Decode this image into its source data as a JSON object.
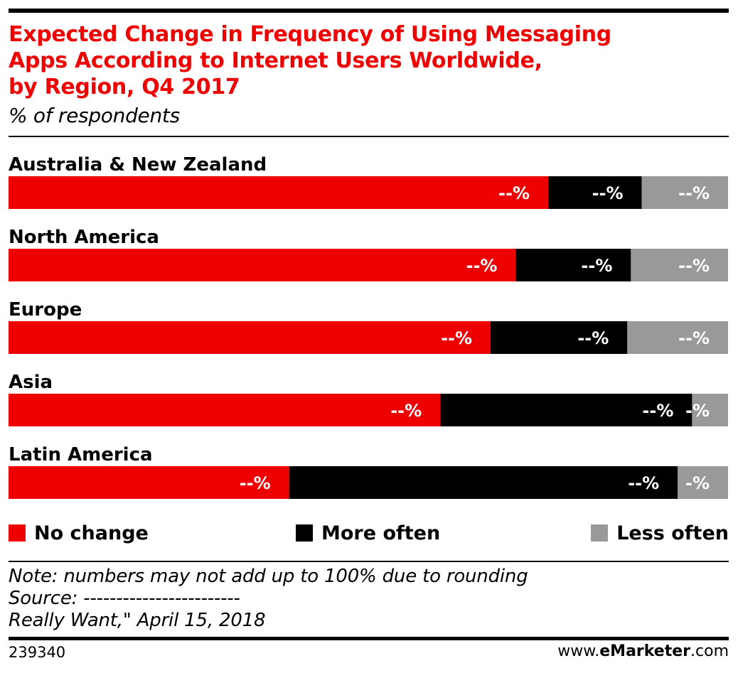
{
  "title_lines": [
    "Expected Change in Frequency of Using Messaging",
    "Apps According to Internet Users Worldwide,",
    "by Region, Q4 2017"
  ],
  "subtitle": "% of respondents",
  "legend": [
    {
      "label": "No change",
      "color": "#ee0000"
    },
    {
      "label": "More often",
      "color": "#000000"
    },
    {
      "label": "Less often",
      "color": "#999999"
    }
  ],
  "notes": {
    "note": "Note: numbers may not add up to 100% due to rounding",
    "source": "Source: ------------------------",
    "source_detail": "Really Want,\" April 15, 2018"
  },
  "footer": {
    "chart_id": "239340",
    "brand_prefix": "www.",
    "brand_bold": "eMarketer",
    "brand_suffix": ".com"
  },
  "chart_data": {
    "type": "bar",
    "orientation": "horizontal-stacked-100",
    "categories": [
      "Australia & New Zealand",
      "North America",
      "Europe",
      "Asia",
      "Latin America"
    ],
    "series": [
      {
        "name": "No change",
        "color": "#ee0000",
        "values": [
          75,
          70.5,
          67,
          60,
          39
        ],
        "labels": [
          "--%",
          "--%",
          "--%",
          "--%",
          "--%"
        ]
      },
      {
        "name": "More often",
        "color": "#000000",
        "values": [
          13,
          16,
          19,
          35,
          54
        ],
        "labels": [
          "--%",
          "--%",
          "--%",
          "--%",
          "--%"
        ]
      },
      {
        "name": "Less often",
        "color": "#999999",
        "values": [
          12,
          13.5,
          14,
          5,
          7
        ],
        "labels": [
          "--%",
          "--%",
          "--%",
          "-%",
          "-%"
        ]
      }
    ],
    "xlim": [
      0,
      100
    ],
    "grid": false,
    "legend_position": "bottom"
  }
}
